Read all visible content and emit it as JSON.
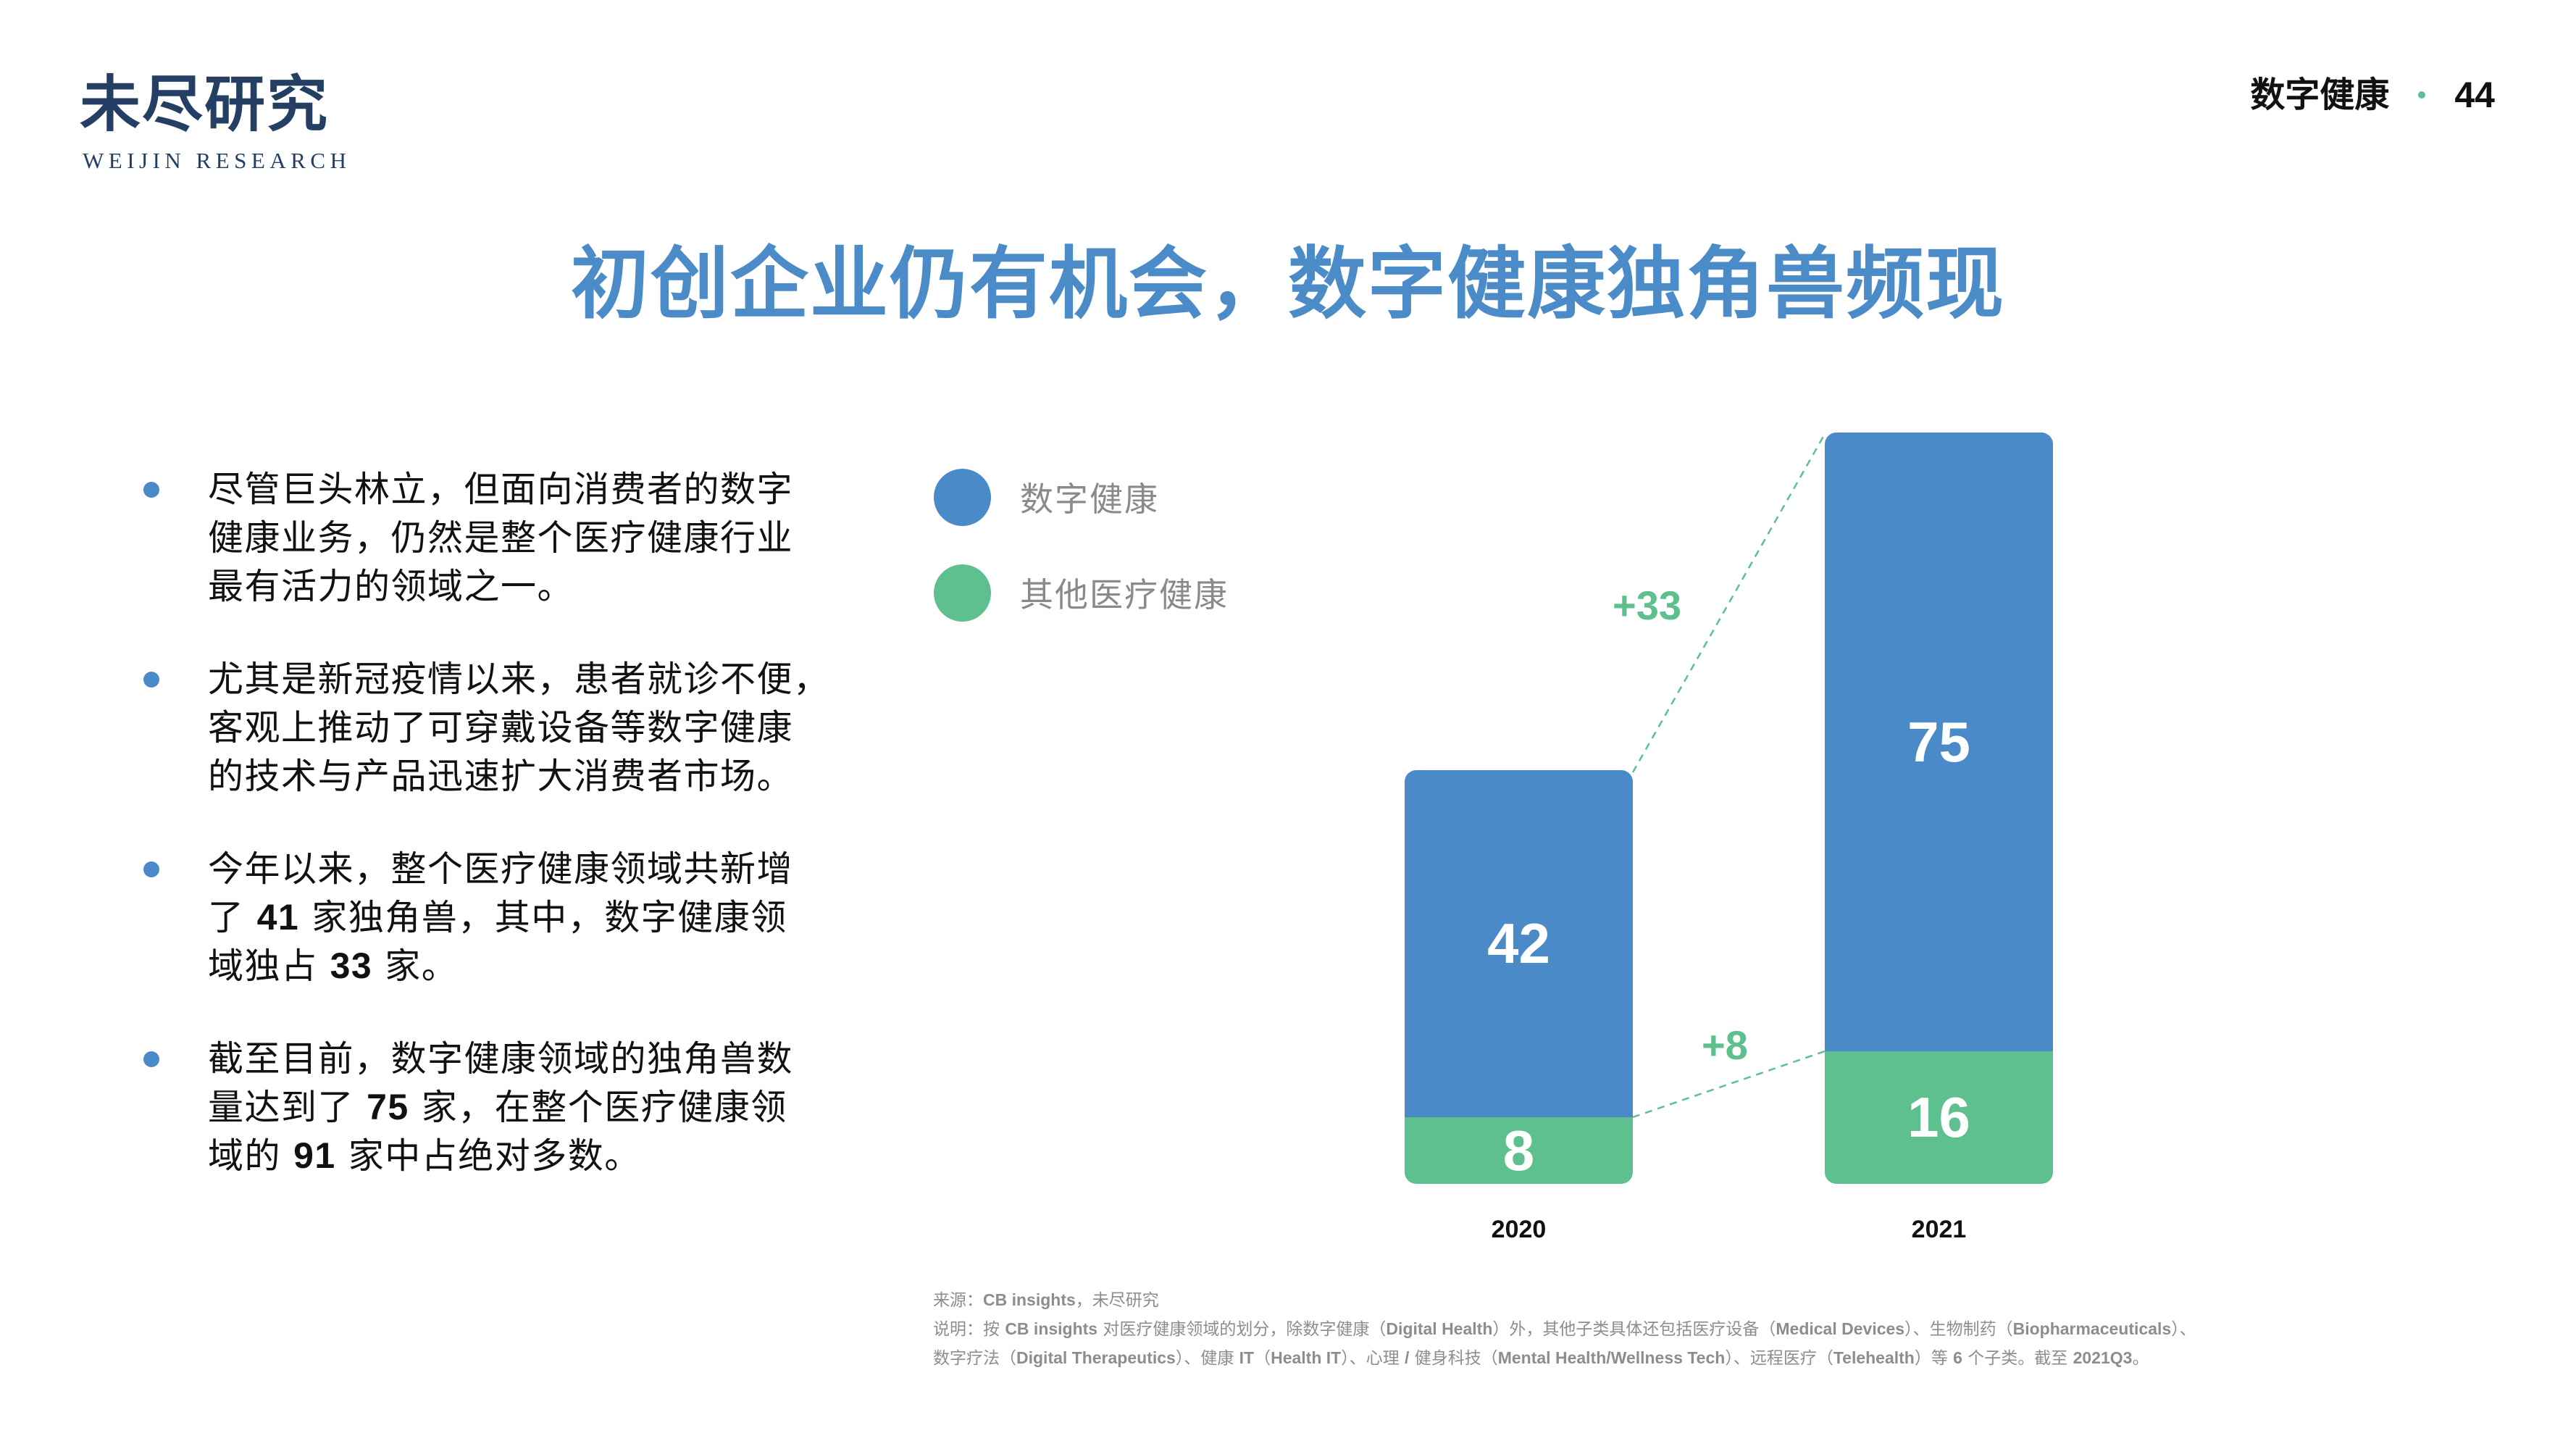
{
  "logo": {
    "cn": "未尽研究",
    "en": "WEIJIN RESEARCH"
  },
  "header": {
    "section": "数字健康",
    "page_number": "44",
    "dot_color": "#5ec08e"
  },
  "title": "初创企业仍有机会，数字健康独角兽频现",
  "bullets": [
    {
      "parts": [
        "尽管巨头林立，但面向消费者的数字健康业务，仍然是整个医疗健康行业最有活力的领域之一。"
      ]
    },
    {
      "parts": [
        "尤其是新冠疫情以来，患者就诊不便，客观上推动了可穿戴设备等数字健康的技术与产品迅速扩大消费者市场。"
      ]
    },
    {
      "pre": "今年以来，整个医疗健康领域共新增了 ",
      "n1": "41",
      "mid": " 家独角兽，其中，数字健康领域独占 ",
      "n2": "33",
      "post": " 家。"
    },
    {
      "pre": "截至目前，数字健康领域的独角兽数量达到了 ",
      "n1": "75",
      "mid": " 家，在整个医疗健康领域的 ",
      "n2": "91",
      "post": " 家中占绝对多数。"
    }
  ],
  "bullet_lines": [
    [
      "尽管巨头林立，但面向消费者的数字",
      "健康业务，仍然是整个医疗健康行业",
      "最有活力的领域之一。"
    ],
    [
      "尤其是新冠疫情以来，患者就诊不便，",
      "客观上推动了可穿戴设备等数字健康",
      "的技术与产品迅速扩大消费者市场。"
    ]
  ],
  "legend": [
    {
      "label": "数字健康",
      "color": "#4a8ac8"
    },
    {
      "label": "其他医疗健康",
      "color": "#5ec08e"
    }
  ],
  "chart_data": {
    "type": "bar",
    "stacked": true,
    "title": "",
    "categories": [
      "2020",
      "2021"
    ],
    "series": [
      {
        "name": "其他医疗健康",
        "values": [
          8,
          16
        ],
        "color": "#5ec08e"
      },
      {
        "name": "数字健康",
        "values": [
          42,
          75
        ],
        "color": "#4a8ac8"
      }
    ],
    "totals": [
      50,
      91
    ],
    "annotations": [
      {
        "text": "+33",
        "series": "数字健康",
        "from": "2020",
        "to": "2021"
      },
      {
        "text": "+8",
        "series": "其他医疗健康",
        "from": "2020",
        "to": "2021"
      }
    ],
    "xlabel": "",
    "ylabel": "",
    "grid": false,
    "legend_position": "top-left"
  },
  "chart_labels": {
    "bar2020_blue": "42",
    "bar2020_green": "8",
    "bar2021_blue": "75",
    "bar2021_green": "16",
    "year2020": "2020",
    "year2021": "2021",
    "delta_blue": "+33",
    "delta_green": "+8"
  },
  "footer": {
    "source_prefix": "来源：",
    "source_bold": "CB insights",
    "source_suffix": "，未尽研究",
    "note_line1": [
      {
        "t": "说明：按 "
      },
      {
        "b": "CB insights"
      },
      {
        "t": " 对医疗健康领域的划分，除数字健康（"
      },
      {
        "b": "Digital Health"
      },
      {
        "t": "）外，其他子类具体还包括医疗设备（"
      },
      {
        "b": "Medical Devices"
      },
      {
        "t": "）、生物制药（"
      },
      {
        "b": "Biopharmaceuticals"
      },
      {
        "t": "）、"
      }
    ],
    "note_line2": [
      {
        "t": "数字疗法（"
      },
      {
        "b": "Digital Therapeutics"
      },
      {
        "t": "）、健康 "
      },
      {
        "b": "IT"
      },
      {
        "t": "（"
      },
      {
        "b": "Health IT"
      },
      {
        "t": "）、心理 "
      },
      {
        "b": "/"
      },
      {
        "t": " 健身科技（"
      },
      {
        "b": "Mental Health/Wellness Tech"
      },
      {
        "t": "）、远程医疗（"
      },
      {
        "b": "Telehealth"
      },
      {
        "t": "）等 "
      },
      {
        "b": "6"
      },
      {
        "t": " 个子类。截至 "
      },
      {
        "b": "2021Q3"
      },
      {
        "t": "。"
      }
    ]
  }
}
